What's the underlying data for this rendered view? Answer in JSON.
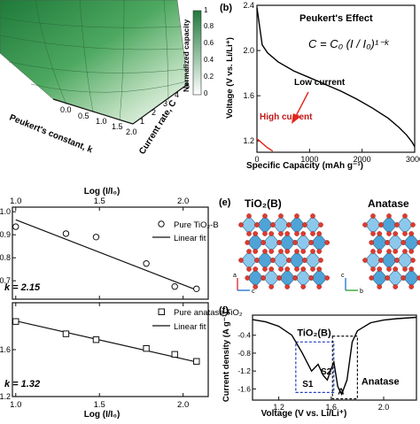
{
  "chart_data": [
    {
      "panel": "a",
      "type": "surface",
      "xlabel": "Peukert's constant, k",
      "ylabel": "Current rate, C",
      "x_ticks": [
        "0.0",
        "0.5",
        "1.0",
        "1.5",
        "2.0"
      ],
      "y_ticks": [
        "1",
        "2",
        "3",
        "4",
        "5"
      ],
      "colorbar": {
        "label": "Normalized capacity",
        "ticks": [
          "0",
          "0.2",
          "0.4",
          "0.6",
          "0.8",
          "1"
        ],
        "low_color": "#ffffff",
        "high_color": "#1f7a3a"
      }
    },
    {
      "panel": "b",
      "type": "line",
      "label": "(b)",
      "title": "Peukert's Effect",
      "equation": "C = C₀ (I / I₀)¹⁻ᵏ",
      "xlabel": "Specific Capacity (mAh g⁻¹)",
      "ylabel": "Voltage (V vs. Li/Li⁺)",
      "xlim": [
        0,
        3000
      ],
      "ylim": [
        1.1,
        2.4
      ],
      "x_ticks": [
        0,
        1000,
        2000,
        3000
      ],
      "y_ticks": [
        1.2,
        1.6,
        2.0,
        2.4
      ],
      "annotations": [
        "Low current",
        "High current"
      ],
      "series": [
        {
          "color": "#000000",
          "x": [
            0,
            100,
            200,
            400,
            700,
            1000,
            1300,
            1600,
            1900,
            2200,
            2500,
            2700,
            2850,
            2950,
            3000
          ],
          "y": [
            2.38,
            2.05,
            1.98,
            1.9,
            1.82,
            1.76,
            1.7,
            1.64,
            1.57,
            1.49,
            1.4,
            1.32,
            1.25,
            1.19,
            1.15
          ]
        },
        {
          "color": "#e3241b",
          "x": [
            0,
            100,
            200,
            300
          ],
          "y": [
            1.22,
            1.18,
            1.14,
            1.11
          ]
        }
      ]
    },
    {
      "panel": "c",
      "type": "scatter",
      "xlabel_top": "Log (I/I₀)",
      "x_ticks": [
        1.0,
        1.5,
        2.0
      ],
      "xlim": [
        0.98,
        2.15
      ],
      "ylim": [
        0.62,
        1.02
      ],
      "y_ticks": [
        "1.0",
        "0.9",
        "0.8",
        "0.7"
      ],
      "legend": [
        "Pure TiO₂-B",
        "Linear fit"
      ],
      "k_label": "k = 2.15",
      "x": [
        1.0,
        1.3,
        1.48,
        1.78,
        1.95,
        2.08
      ],
      "y": [
        0.935,
        0.905,
        0.89,
        0.775,
        0.675,
        0.665
      ],
      "fit": {
        "x": [
          1.0,
          2.08
        ],
        "y": [
          0.965,
          0.66
        ]
      }
    },
    {
      "panel": "d",
      "type": "scatter",
      "xlabel": "Log (I/I₀)",
      "x_ticks": [
        1.0,
        1.5,
        2.0
      ],
      "xlim": [
        0.98,
        2.15
      ],
      "ylim": [
        1.2,
        2.0
      ],
      "y_ticks": [
        "1.6",
        "1.2"
      ],
      "legend": [
        "Pure anatase TiO₂",
        "Linear fit"
      ],
      "k_label": "k = 1.32",
      "x": [
        1.0,
        1.3,
        1.48,
        1.78,
        1.95,
        2.08
      ],
      "y": [
        1.84,
        1.735,
        1.685,
        1.61,
        1.56,
        1.5
      ],
      "fit": {
        "x": [
          1.0,
          2.08
        ],
        "y": [
          1.845,
          1.495
        ]
      }
    },
    {
      "panel": "e",
      "type": "crystal-structure",
      "label": "(e)",
      "structures": [
        "TiO₂(B)",
        "Anatase"
      ],
      "axes": [
        "a",
        "b",
        "c"
      ]
    },
    {
      "panel": "f",
      "type": "line",
      "label": "(f)",
      "xlabel": "Voltage (V vs. Li/Li⁺)",
      "ylabel": "Current density (A g⁻¹)",
      "xlim": [
        1.0,
        2.25
      ],
      "ylim": [
        -1.85,
        0.05
      ],
      "x_ticks": [
        1.2,
        1.6,
        2.0
      ],
      "y_ticks": [
        -0.4,
        -0.8,
        -1.2,
        -1.6
      ],
      "annotations": [
        "TiO₂(B)",
        "S1",
        "S2",
        "A",
        "Anatase"
      ],
      "series": [
        {
          "color": "#000000",
          "x": [
            1.0,
            1.1,
            1.2,
            1.3,
            1.38,
            1.45,
            1.5,
            1.54,
            1.57,
            1.6,
            1.62,
            1.65,
            1.68,
            1.72,
            1.76,
            1.8,
            1.9,
            2.0,
            2.1,
            2.25
          ],
          "y": [
            -0.05,
            -0.1,
            -0.2,
            -0.4,
            -0.8,
            -1.2,
            -1.05,
            -1.3,
            -1.4,
            -1.15,
            -1.0,
            -1.55,
            -1.72,
            -1.4,
            -0.55,
            -0.3,
            -0.12,
            -0.06,
            -0.03,
            0.0
          ]
        }
      ]
    }
  ]
}
